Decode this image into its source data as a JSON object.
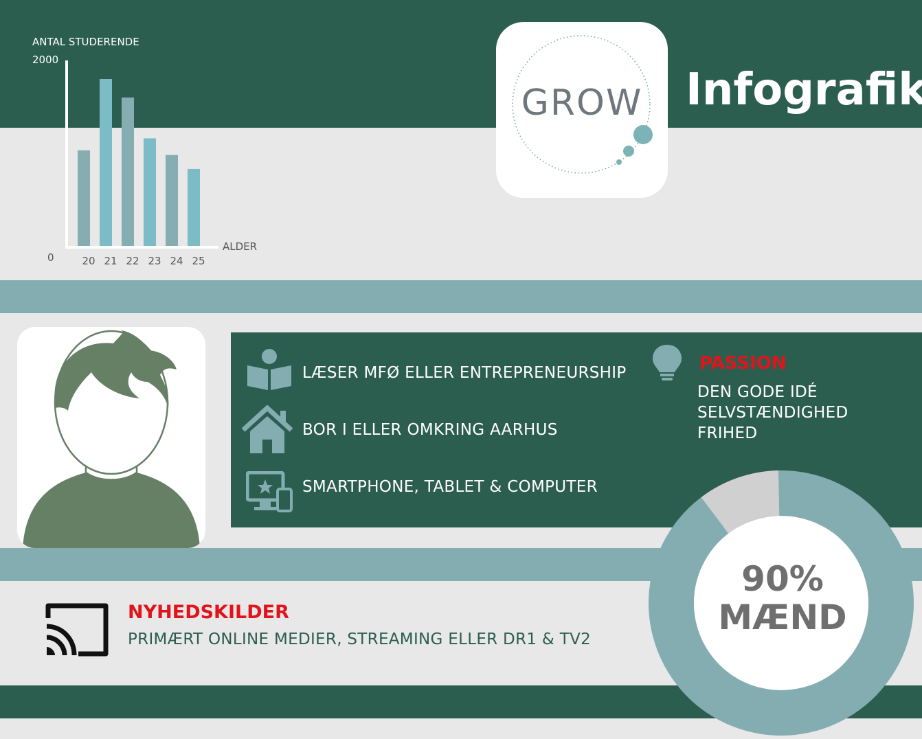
{
  "header": {
    "title": "Infografik",
    "logo_text": "GROW"
  },
  "chart_data": {
    "type": "bar",
    "ylabel": "ANTAL STUDERENDE",
    "xlabel": "ALDER",
    "ylim": [
      0,
      2000
    ],
    "y_ticks": [
      "2000",
      "0"
    ],
    "categories": [
      "20",
      "21",
      "22",
      "23",
      "24",
      "25"
    ],
    "values": [
      1030,
      1800,
      1600,
      1160,
      980,
      830
    ]
  },
  "profile": {
    "traits": [
      {
        "icon": "book-reader-icon",
        "label": "LÆSER MFØ ELLER ENTREPRENEURSHIP"
      },
      {
        "icon": "house-icon",
        "label": "BOR I ELLER OMKRING AARHUS"
      },
      {
        "icon": "devices-icon",
        "label": "SMARTPHONE, TABLET & COMPUTER"
      }
    ],
    "passion": {
      "heading": "PASSION",
      "items": [
        "DEN GODE IDÉ",
        "SELVSTÆNDIGHED",
        "FRIHED"
      ]
    }
  },
  "gender": {
    "percent_label": "90%",
    "label": "MÆND",
    "share_male": 0.9
  },
  "news": {
    "heading": "NYHEDSKILDER",
    "text": "PRIMÆRT ONLINE MEDIER, STREAMING ELLER DR1 & TV2"
  },
  "colors": {
    "dark_green": "#2c5e50",
    "teal": "#84adb2",
    "bar_a": "#86adb2",
    "bar_b": "#7bbcc6",
    "background": "#e8e8e8",
    "accent_red": "#e1141c",
    "avatar_green": "#668066"
  }
}
